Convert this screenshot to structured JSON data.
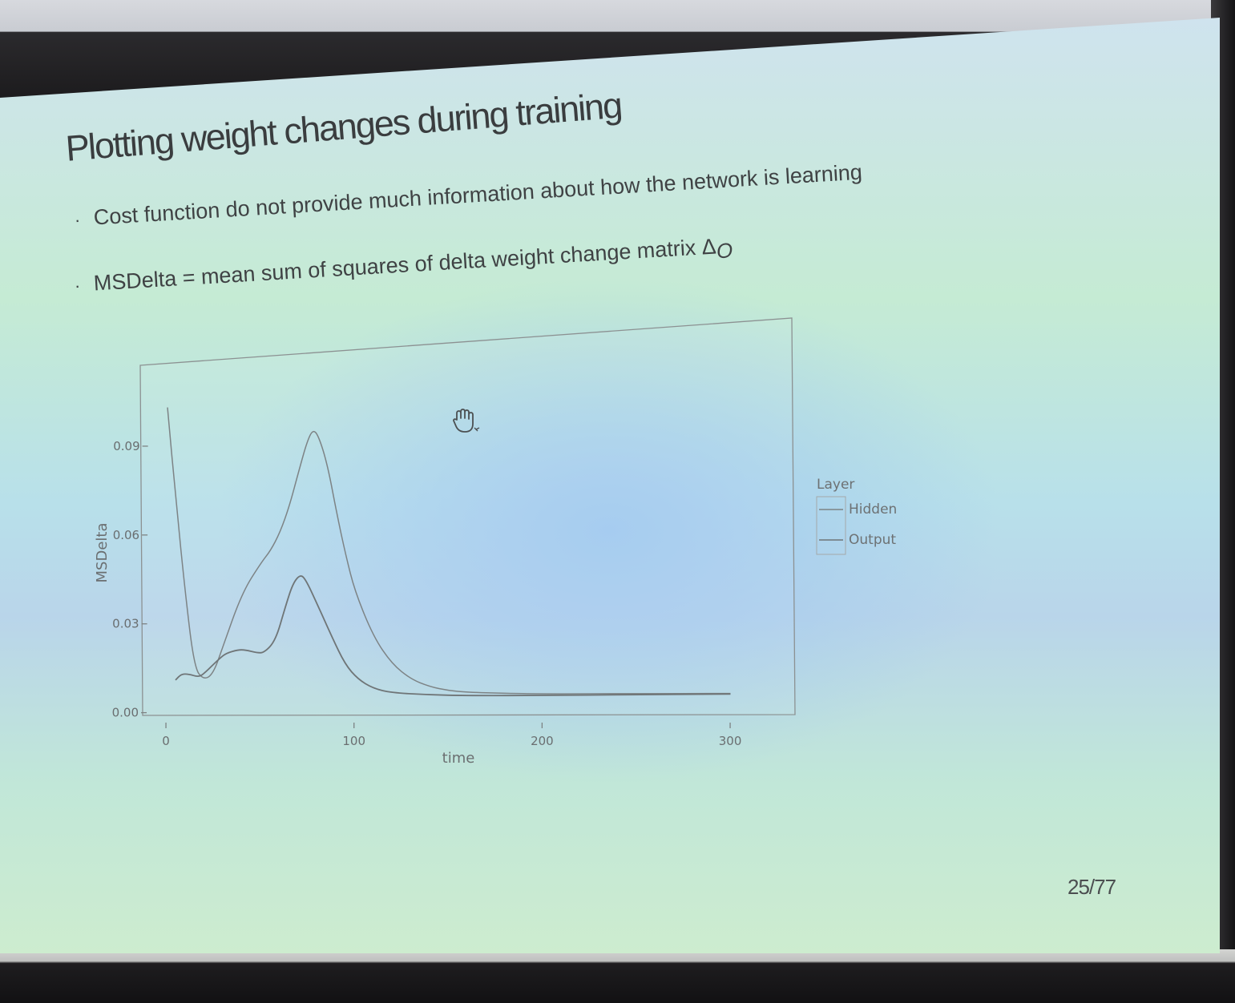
{
  "slide": {
    "title": "Plotting weight changes during training",
    "bullets": [
      "Cost function do not provide much information about how the network is learning",
      "MSDelta = mean sum of squares of delta weight change matrix Δ"
    ],
    "delta_subscript": "O",
    "bullet_marker": "·",
    "page_number": "25/77"
  },
  "icons": {
    "cursor": "hand-cursor-icon"
  },
  "chart_data": {
    "type": "line",
    "title": "",
    "xlabel": "time",
    "ylabel": "MSDelta",
    "xlim": [
      -3,
      320
    ],
    "ylim": [
      -0.002,
      0.11
    ],
    "x_ticks": [
      0,
      100,
      200,
      300
    ],
    "x_tick_labels": [
      "0",
      "100",
      "200",
      "300"
    ],
    "y_ticks": [
      0.0,
      0.03,
      0.06,
      0.09
    ],
    "y_tick_labels": [
      "0.00",
      "0.03",
      "0.06",
      "0.09"
    ],
    "grid": false,
    "legend": {
      "title": "Layer",
      "position": "right"
    },
    "series": [
      {
        "name": "Hidden",
        "color": "#7d8385",
        "points": [
          [
            0,
            0.103
          ],
          [
            5,
            0.07
          ],
          [
            10,
            0.04
          ],
          [
            15,
            0.015
          ],
          [
            20,
            0.011
          ],
          [
            25,
            0.013
          ],
          [
            30,
            0.022
          ],
          [
            40,
            0.04
          ],
          [
            50,
            0.05
          ],
          [
            55,
            0.054
          ],
          [
            60,
            0.06
          ],
          [
            65,
            0.069
          ],
          [
            70,
            0.081
          ],
          [
            74,
            0.09
          ],
          [
            77,
            0.094
          ],
          [
            80,
            0.092
          ],
          [
            85,
            0.082
          ],
          [
            90,
            0.066
          ],
          [
            95,
            0.052
          ],
          [
            100,
            0.04
          ],
          [
            110,
            0.025
          ],
          [
            120,
            0.016
          ],
          [
            130,
            0.011
          ],
          [
            140,
            0.0085
          ],
          [
            150,
            0.0072
          ],
          [
            160,
            0.0066
          ],
          [
            180,
            0.0062
          ],
          [
            200,
            0.006
          ],
          [
            250,
            0.006
          ],
          [
            300,
            0.006
          ]
        ]
      },
      {
        "name": "Output",
        "color": "#6f7577",
        "points": [
          [
            5,
            0.011
          ],
          [
            8,
            0.013
          ],
          [
            12,
            0.013
          ],
          [
            17,
            0.012
          ],
          [
            20,
            0.013
          ],
          [
            28,
            0.018
          ],
          [
            32,
            0.02
          ],
          [
            38,
            0.021
          ],
          [
            42,
            0.021
          ],
          [
            48,
            0.02
          ],
          [
            52,
            0.02
          ],
          [
            58,
            0.024
          ],
          [
            63,
            0.035
          ],
          [
            67,
            0.043
          ],
          [
            71,
            0.046
          ],
          [
            74,
            0.044
          ],
          [
            80,
            0.036
          ],
          [
            88,
            0.025
          ],
          [
            95,
            0.016
          ],
          [
            102,
            0.011
          ],
          [
            110,
            0.008
          ],
          [
            120,
            0.0065
          ],
          [
            140,
            0.0058
          ],
          [
            160,
            0.0055
          ],
          [
            200,
            0.0055
          ],
          [
            250,
            0.0057
          ],
          [
            300,
            0.0058
          ]
        ]
      }
    ]
  }
}
